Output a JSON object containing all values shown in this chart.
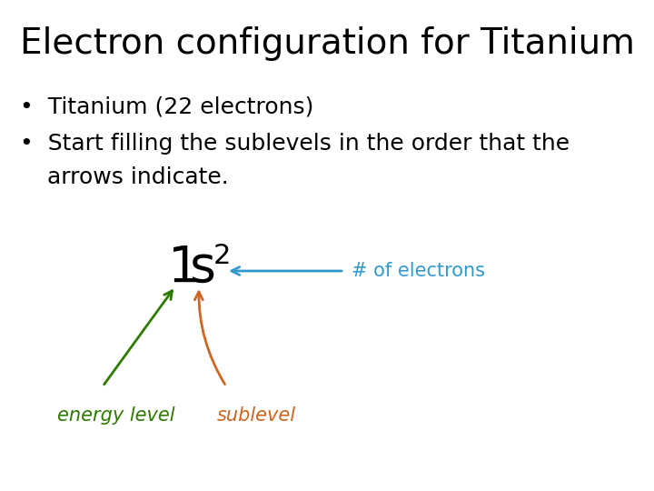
{
  "title": "Electron configuration for Titanium",
  "bullet1": "Titanium (22 electrons)",
  "bullet2_line1": "Start filling the sublevels in the order that the",
  "bullet2_line2": "arrows indicate.",
  "main_text_1": "1",
  "main_text_s": "s",
  "superscript": "2",
  "label_energy": "energy level",
  "label_sublevel": "sublevel",
  "label_electrons": "# of electrons",
  "color_energy": "#2d7a00",
  "color_sublevel": "#cc6622",
  "color_electrons": "#3399cc",
  "bg_color": "#ffffff",
  "title_color": "#000000",
  "bullet_color": "#000000",
  "title_fontsize": 28,
  "bullet_fontsize": 18,
  "main_fontsize": 40,
  "super_fontsize": 22,
  "label_fontsize": 15
}
